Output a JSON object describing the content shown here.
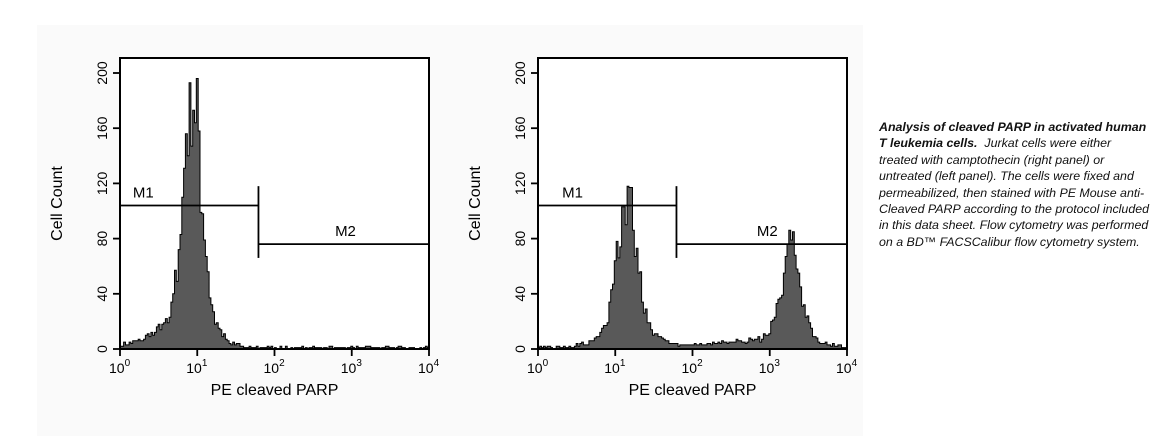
{
  "figure": {
    "background_color": "#fafafa",
    "histogram_fill": "#595959",
    "axis_color": "#000000"
  },
  "caption": {
    "bold": "Analysis of cleaved PARP in activated human T leukemia cells.",
    "rest": "Jurkat cells were either treated with camptothecin (right panel) or untreated (left panel). The cells were fixed and permeabilized, then stained with PE Mouse anti-Cleaved PARP according to the protocol included in this data sheet.  Flow cytometry was performed on a BD™ FACSCalibur flow cytometry system."
  },
  "chart_data": [
    {
      "type": "area",
      "panel": "left",
      "condition": "untreated",
      "xlabel": "PE cleaved PARP",
      "ylabel": "Cell Count",
      "x_scale": "log10",
      "xlim": [
        1,
        10000
      ],
      "x_tick_exponents": [
        0,
        1,
        2,
        3,
        4
      ],
      "x_ticks": [
        "10⁰",
        "10¹",
        "10²",
        "10³",
        "10⁴"
      ],
      "ylim": [
        0,
        200
      ],
      "y_ticks": [
        0,
        40,
        80,
        120,
        160,
        200
      ],
      "grid": false,
      "peaks": [
        {
          "center": 8.7,
          "height": 150,
          "sigma_decades": 0.11
        },
        {
          "center": 8.7,
          "height": 32,
          "sigma_decades": 0.25
        },
        {
          "center": 3,
          "height": 7,
          "sigma_decades": 0.3
        }
      ],
      "noise_floor": 1.8,
      "noise_seed": 11,
      "gates": [
        {
          "label": "M1",
          "y": 104,
          "x_from": 1,
          "x_to": 62,
          "label_x": 2.0
        },
        {
          "label": "M2",
          "y": 76,
          "x_from": 62,
          "x_to": 10000,
          "label_x": 830
        }
      ],
      "gate_bracket": {
        "x": 62,
        "y_from": 66,
        "y_to": 118
      }
    },
    {
      "type": "area",
      "panel": "right",
      "condition": "camptothecin-treated",
      "xlabel": "PE cleaved PARP",
      "ylabel": "Cell Count",
      "x_scale": "log10",
      "xlim": [
        1,
        10000
      ],
      "x_tick_exponents": [
        0,
        1,
        2,
        3,
        4
      ],
      "x_ticks": [
        "10⁰",
        "10¹",
        "10²",
        "10³",
        "10⁴"
      ],
      "ylim": [
        0,
        200
      ],
      "y_ticks": [
        0,
        40,
        80,
        120,
        160,
        200
      ],
      "grid": false,
      "peaks": [
        {
          "center": 14.5,
          "height": 88,
          "sigma_decades": 0.125
        },
        {
          "center": 14.5,
          "height": 18,
          "sigma_decades": 0.28
        },
        {
          "center": 1900,
          "height": 62,
          "sigma_decades": 0.115
        },
        {
          "center": 1900,
          "height": 13,
          "sigma_decades": 0.26
        },
        {
          "center": 300,
          "height": 4,
          "sigma_decades": 0.35
        }
      ],
      "noise_floor": 2.2,
      "noise_seed": 29,
      "gates": [
        {
          "label": "M1",
          "y": 104,
          "x_from": 1,
          "x_to": 62,
          "label_x": 2.8
        },
        {
          "label": "M2",
          "y": 76,
          "x_from": 62,
          "x_to": 10000,
          "label_x": 930
        }
      ],
      "gate_bracket": {
        "x": 62,
        "y_from": 66,
        "y_to": 118
      }
    }
  ]
}
